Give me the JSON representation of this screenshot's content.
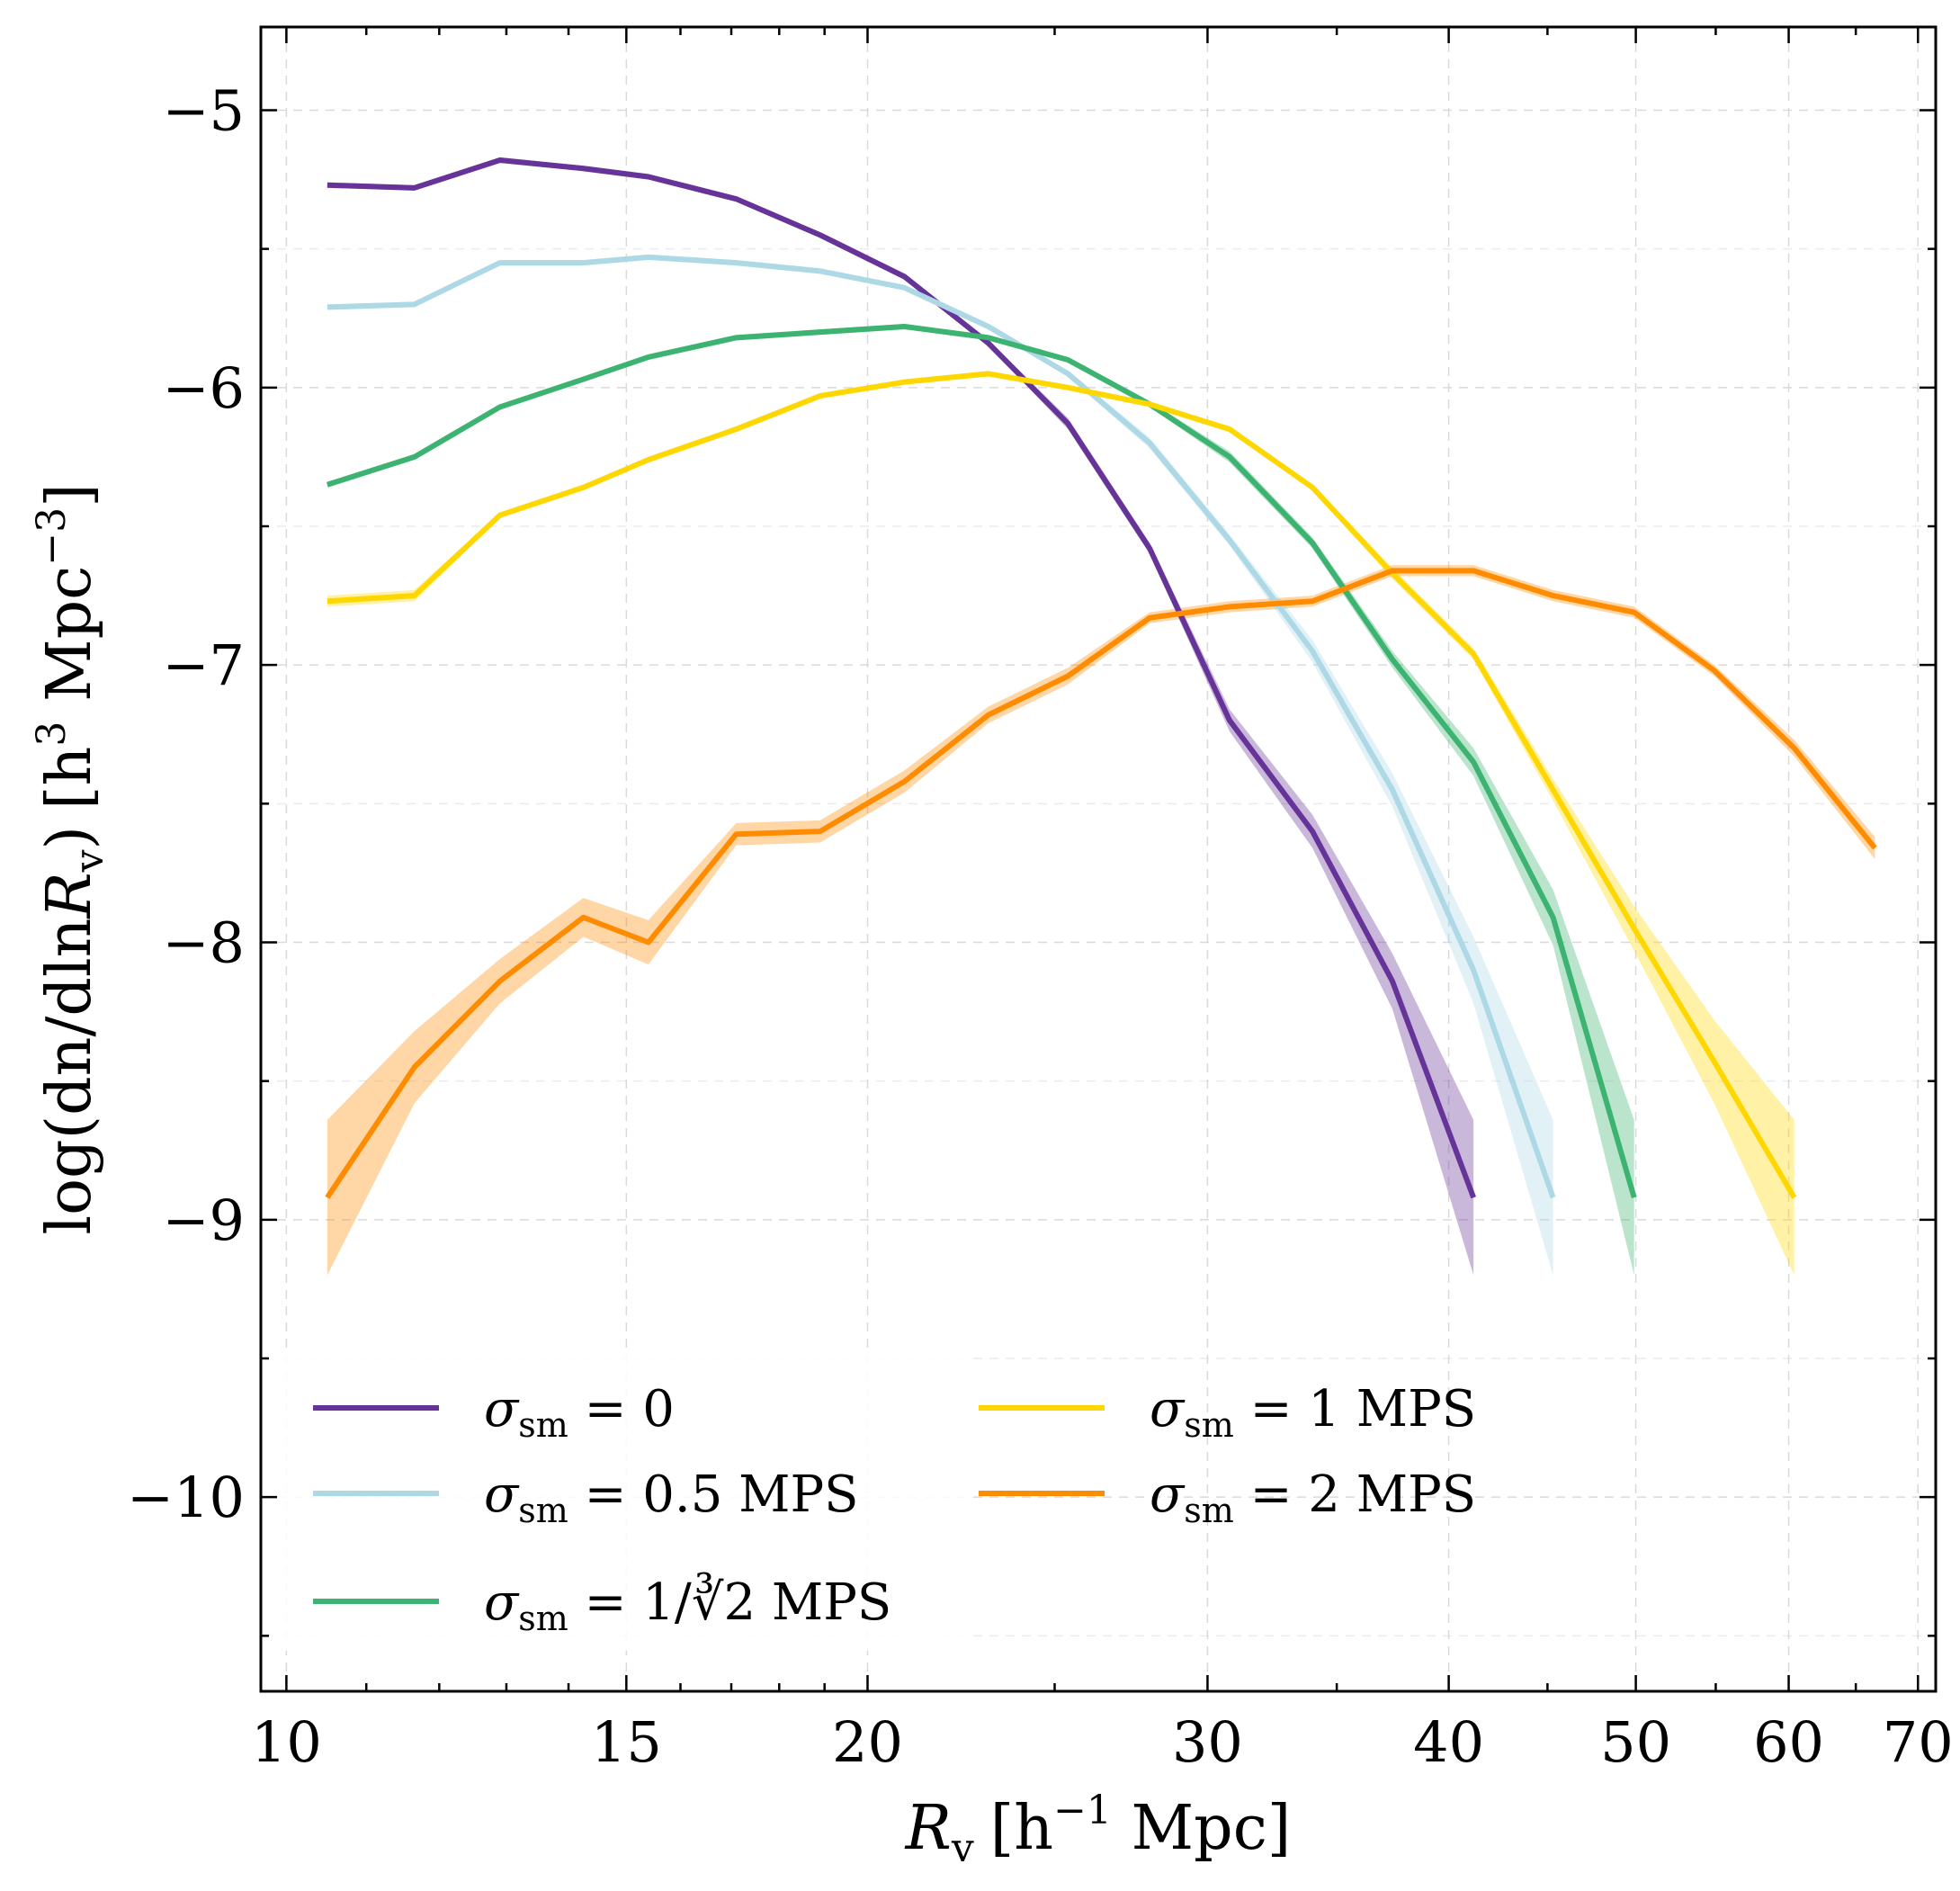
{
  "chart_data": {
    "type": "line",
    "xscale": "log",
    "xlabel": "R_v [h^-1 Mpc]",
    "ylabel": "log(dn/dlnR_v) [h^3 Mpc^-3]",
    "xlabel_parts": {
      "main": "R",
      "sub": "v",
      "bracket": "[h",
      "sup": "−1",
      "unit": " Mpc]"
    },
    "ylabel_parts": {
      "pre": "log(dn/dln",
      "main": "R",
      "sub": "v",
      "close": ")",
      "bracket": "[h",
      "sup1": "3",
      "unit": " Mpc",
      "sup2": "−3",
      "end": "]"
    },
    "xlim": [
      9.7,
      71.5
    ],
    "ylim": [
      -10.7,
      -4.7
    ],
    "xticks": [
      10,
      15,
      20,
      30,
      40,
      50,
      60,
      70
    ],
    "yticks": [
      -5,
      -6,
      -7,
      -8,
      -9,
      -10
    ],
    "xtick_labels": [
      "10",
      "15",
      "20",
      "30",
      "40",
      "50",
      "60",
      "70"
    ],
    "ytick_labels": [
      "−5",
      "−6",
      "−7",
      "−8",
      "−9",
      "−10"
    ],
    "grid": true,
    "legend_location": "lower-left",
    "series": [
      {
        "name": "σ_sm = 0",
        "legend": {
          "sym": "σ",
          "sub": "sm",
          "rest": " = 0"
        },
        "color": "#663399",
        "x": [
          10.5,
          11.65,
          12.9,
          14.25,
          15.4,
          17.1,
          18.9,
          20.9,
          23.1,
          25.4,
          28.0,
          30.8,
          34.0,
          37.4,
          41.2
        ],
        "y": [
          -5.27,
          -5.28,
          -5.18,
          -5.21,
          -5.24,
          -5.32,
          -5.45,
          -5.6,
          -5.84,
          -6.13,
          -6.58,
          -7.2,
          -7.6,
          -8.14,
          -8.92
        ],
        "band": [
          0.01,
          0.01,
          0.01,
          0.01,
          0.01,
          0.01,
          0.01,
          0.01,
          0.01,
          0.02,
          0.02,
          0.04,
          0.06,
          0.1,
          0.28
        ]
      },
      {
        "name": "σ_sm = 0.5 MPS",
        "legend": {
          "sym": "σ",
          "sub": "sm",
          "rest": " = 0.5 MPS"
        },
        "color": "#add8e6",
        "x": [
          10.5,
          11.65,
          12.9,
          14.25,
          15.4,
          17.1,
          18.9,
          20.9,
          23.1,
          25.4,
          28.0,
          30.8,
          34.0,
          37.4,
          41.2,
          45.3
        ],
        "y": [
          -5.71,
          -5.7,
          -5.55,
          -5.55,
          -5.53,
          -5.55,
          -5.58,
          -5.64,
          -5.78,
          -5.95,
          -6.2,
          -6.55,
          -6.95,
          -7.45,
          -8.1,
          -8.92
        ],
        "band": [
          0.01,
          0.01,
          0.01,
          0.01,
          0.01,
          0.01,
          0.01,
          0.01,
          0.01,
          0.01,
          0.02,
          0.02,
          0.04,
          0.06,
          0.12,
          0.28
        ]
      },
      {
        "name": "σ_sm = 1/∛2 MPS",
        "legend": {
          "sym": "σ",
          "sub": "sm",
          "rest": " = 1/∛2 MPS"
        },
        "color": "#3cb371",
        "x": [
          10.5,
          11.65,
          12.9,
          14.25,
          15.4,
          17.1,
          18.9,
          20.9,
          23.1,
          25.4,
          28.0,
          30.8,
          34.0,
          37.4,
          41.2,
          45.3,
          49.9
        ],
        "y": [
          -6.35,
          -6.25,
          -6.07,
          -5.97,
          -5.89,
          -5.82,
          -5.8,
          -5.78,
          -5.82,
          -5.9,
          -6.06,
          -6.25,
          -6.56,
          -6.98,
          -7.35,
          -7.91,
          -8.92
        ],
        "band": [
          0.01,
          0.01,
          0.01,
          0.01,
          0.01,
          0.01,
          0.01,
          0.01,
          0.01,
          0.01,
          0.01,
          0.02,
          0.02,
          0.03,
          0.05,
          0.1,
          0.28
        ]
      },
      {
        "name": "σ_sm = 1 MPS",
        "legend": {
          "sym": "σ",
          "sub": "sm",
          "rest": " = 1 MPS"
        },
        "color": "#ffd700",
        "x": [
          10.5,
          11.65,
          12.9,
          14.25,
          15.4,
          17.1,
          18.9,
          20.9,
          23.1,
          25.4,
          28.0,
          30.8,
          34.0,
          37.4,
          41.2,
          45.3,
          49.9,
          54.9,
          60.4
        ],
        "y": [
          -6.77,
          -6.75,
          -6.46,
          -6.36,
          -6.26,
          -6.15,
          -6.03,
          -5.98,
          -5.95,
          -6.0,
          -6.06,
          -6.15,
          -6.36,
          -6.67,
          -6.96,
          -7.45,
          -7.95,
          -8.43,
          -8.92
        ],
        "band": [
          0.02,
          0.02,
          0.01,
          0.01,
          0.01,
          0.01,
          0.01,
          0.01,
          0.01,
          0.01,
          0.01,
          0.01,
          0.01,
          0.02,
          0.02,
          0.04,
          0.08,
          0.15,
          0.28
        ]
      },
      {
        "name": "σ_sm = 2 MPS",
        "legend": {
          "sym": "σ",
          "sub": "sm",
          "rest": " = 2 MPS"
        },
        "color": "#ff8c00",
        "x": [
          10.5,
          11.65,
          12.9,
          14.25,
          15.4,
          17.1,
          18.9,
          20.9,
          23.1,
          25.4,
          28.0,
          30.8,
          34.0,
          37.4,
          41.2,
          45.3,
          49.9,
          54.9,
          60.4,
          66.5
        ],
        "y": [
          -8.92,
          -8.45,
          -8.14,
          -7.91,
          -8.0,
          -7.61,
          -7.6,
          -7.42,
          -7.18,
          -7.04,
          -6.83,
          -6.79,
          -6.77,
          -6.66,
          -6.66,
          -6.75,
          -6.81,
          -7.02,
          -7.3,
          -7.66
        ],
        "band": [
          0.28,
          0.13,
          0.08,
          0.07,
          0.08,
          0.04,
          0.04,
          0.04,
          0.03,
          0.03,
          0.02,
          0.02,
          0.02,
          0.02,
          0.02,
          0.02,
          0.02,
          0.02,
          0.03,
          0.04
        ]
      }
    ]
  }
}
